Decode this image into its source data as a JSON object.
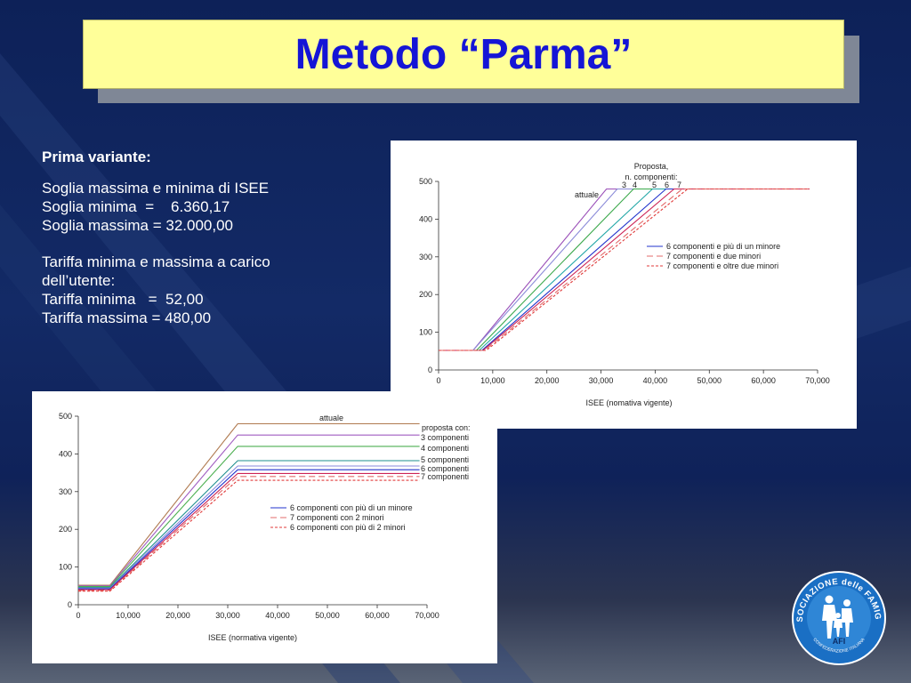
{
  "slide": {
    "title": "Metodo “Parma”",
    "heading": "Prima variante:",
    "lines_a": [
      "Soglia massima e minima di ISEE",
      "Soglia minima  =    6.360,17",
      "Soglia massima = 32.000,00"
    ],
    "lines_b": [
      "Tariffa minima e massima a carico",
      "dell’utente:",
      "Tariffa minima   =  52,00",
      "Tariffa massima = 480,00"
    ]
  },
  "logo": {
    "text_top": "ASSOCIAZIONE delle FAMIGLIE",
    "text_mid": "AFI",
    "text_bottom": "CONFEDERAZIONE ITALIANA",
    "color": "#1a6fc4"
  },
  "chart_data": [
    {
      "type": "line",
      "xlabel": "ISEE (nomativa vigente)",
      "ylabel": "",
      "xlim": [
        0,
        70000
      ],
      "ylim": [
        0,
        500
      ],
      "xticks": [
        0,
        10000,
        20000,
        30000,
        40000,
        50000,
        60000,
        70000
      ],
      "xtick_labels": [
        "0",
        "10,000",
        "20,000",
        "30,000",
        "40,000",
        "50,000",
        "60,000",
        "70,000"
      ],
      "yticks": [
        0,
        100,
        200,
        300,
        400,
        500
      ],
      "grid": false,
      "legend_position": "center-right",
      "annotations": {
        "proposta": "Proposta,",
        "componenti": "n. componenti:",
        "numbers": [
          "3",
          "4",
          "5",
          "6",
          "7"
        ],
        "attuale": "attuale"
      },
      "series": [
        {
          "color": "#9a4fb8",
          "dash": "",
          "points": [
            [
              0,
              52
            ],
            [
              6360,
              52
            ],
            [
              31000,
              480
            ],
            [
              68500,
              480
            ]
          ]
        },
        {
          "color": "#8a8ad8",
          "dash": "",
          "points": [
            [
              0,
              52
            ],
            [
              6360,
              52
            ],
            [
              33000,
              480
            ],
            [
              68500,
              480
            ]
          ]
        },
        {
          "color": "#3aa84a",
          "dash": "",
          "points": [
            [
              0,
              52
            ],
            [
              7000,
              52
            ],
            [
              36000,
              480
            ],
            [
              68500,
              480
            ]
          ]
        },
        {
          "color": "#22a7a7",
          "dash": "",
          "points": [
            [
              0,
              52
            ],
            [
              7500,
              52
            ],
            [
              39500,
              480
            ],
            [
              68500,
              480
            ]
          ]
        },
        {
          "name": "6 componenti e più di un minore",
          "color": "#2233cc",
          "dash": "",
          "points": [
            [
              0,
              52
            ],
            [
              8000,
              52
            ],
            [
              42000,
              480
            ],
            [
              68500,
              480
            ]
          ]
        },
        {
          "color": "#cc2255",
          "dash": "",
          "points": [
            [
              0,
              52
            ],
            [
              8200,
              52
            ],
            [
              43500,
              480
            ],
            [
              68500,
              480
            ]
          ]
        },
        {
          "name": "7 componenti e due minori",
          "color": "#e36b6b",
          "dash": "7,4",
          "points": [
            [
              0,
              52
            ],
            [
              8500,
              52
            ],
            [
              45000,
              480
            ],
            [
              68500,
              480
            ]
          ]
        },
        {
          "name": "7 componenti e oltre due minori",
          "color": "#e03a3a",
          "dash": "3,2",
          "points": [
            [
              0,
              52
            ],
            [
              8800,
              52
            ],
            [
              46000,
              480
            ],
            [
              68500,
              480
            ]
          ]
        }
      ]
    },
    {
      "type": "line",
      "xlabel": "ISEE (normativa vigente)",
      "ylabel": "",
      "xlim": [
        0,
        70000
      ],
      "ylim": [
        0,
        500
      ],
      "xticks": [
        0,
        10000,
        20000,
        30000,
        40000,
        50000,
        60000,
        70000
      ],
      "xtick_labels": [
        "0",
        "10,000",
        "20,000",
        "30,000",
        "40,000",
        "50,000",
        "60,000",
        "70,000"
      ],
      "yticks": [
        0,
        100,
        200,
        300,
        400,
        500
      ],
      "grid": false,
      "legend_position": "center",
      "annotations": {
        "attuale": "attuale",
        "proposta": "proposta con:",
        "labels": [
          "3 componenti",
          "4 componenti",
          "5 componenti",
          "6 componenti",
          "7 componenti"
        ]
      },
      "series": [
        {
          "color": "#b07a50",
          "dash": "",
          "points": [
            [
              0,
              52
            ],
            [
              6360,
              52
            ],
            [
              32000,
              480
            ],
            [
              68500,
              480
            ]
          ]
        },
        {
          "color": "#a05cc0",
          "dash": "",
          "points": [
            [
              0,
              50
            ],
            [
              6360,
              50
            ],
            [
              32000,
              450
            ],
            [
              68500,
              450
            ]
          ]
        },
        {
          "color": "#4caf50",
          "dash": "",
          "points": [
            [
              0,
              48
            ],
            [
              6360,
              48
            ],
            [
              32000,
              420
            ],
            [
              68500,
              420
            ]
          ]
        },
        {
          "color": "#1f8f8f",
          "dash": "",
          "points": [
            [
              0,
              46
            ],
            [
              6360,
              46
            ],
            [
              32000,
              382
            ],
            [
              68500,
              382
            ]
          ]
        },
        {
          "color": "#8888dd",
          "dash": "",
          "points": [
            [
              0,
              44
            ],
            [
              6360,
              44
            ],
            [
              32000,
              368
            ],
            [
              68500,
              368
            ]
          ]
        },
        {
          "name": "6 componenti con più di un minore",
          "color": "#2233cc",
          "dash": "",
          "points": [
            [
              0,
              42
            ],
            [
              6360,
              42
            ],
            [
              32000,
              358
            ],
            [
              68500,
              358
            ]
          ]
        },
        {
          "color": "#cc2255",
          "dash": "",
          "points": [
            [
              0,
              40
            ],
            [
              6360,
              40
            ],
            [
              32000,
              348
            ],
            [
              68500,
              348
            ]
          ]
        },
        {
          "name": "7 componenti con 2 minori",
          "color": "#e36b6b",
          "dash": "7,4",
          "points": [
            [
              0,
              38
            ],
            [
              6360,
              38
            ],
            [
              32000,
              340
            ],
            [
              68500,
              340
            ]
          ]
        },
        {
          "name": "6 componenti con più di 2 minori",
          "color": "#e03a3a",
          "dash": "3,2",
          "points": [
            [
              0,
              36
            ],
            [
              6360,
              36
            ],
            [
              32000,
              330
            ],
            [
              68500,
              330
            ]
          ]
        }
      ]
    }
  ]
}
